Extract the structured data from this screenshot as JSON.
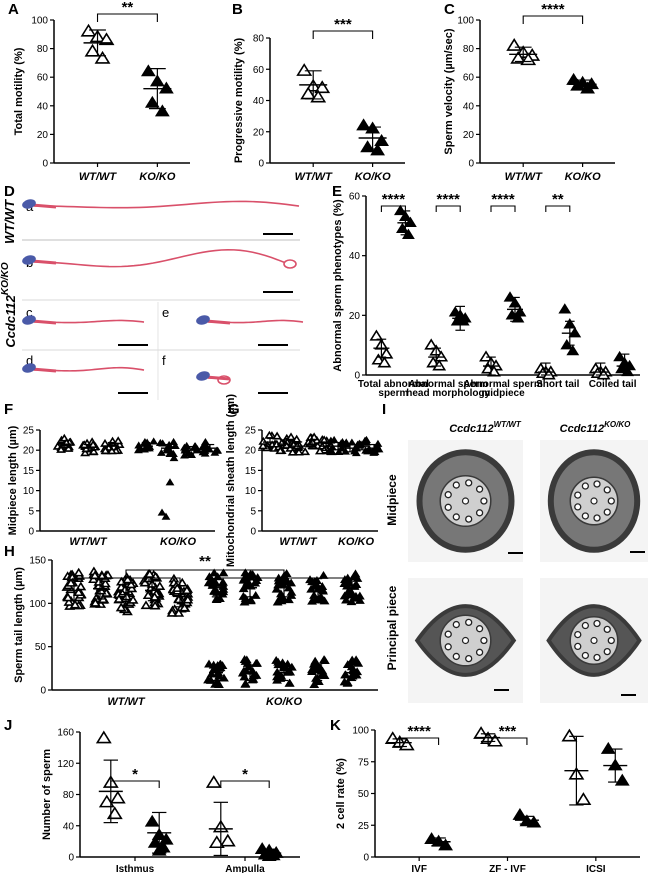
{
  "chart_data": [
    {
      "panel": "A",
      "type": "scatter",
      "ylabel": "Total motility (%)",
      "categories": [
        "WT/WT",
        "KO/KO"
      ],
      "ylim": [
        0,
        100
      ],
      "yticks": [
        0,
        20,
        40,
        60,
        80,
        100
      ],
      "significance": "**",
      "series": [
        {
          "marker": "open-triangle",
          "values": [
            92,
            88,
            86,
            78,
            73
          ]
        },
        {
          "marker": "filled-triangle",
          "values": [
            64,
            57,
            52,
            42,
            36
          ]
        }
      ],
      "mean": [
        84,
        52
      ],
      "sd": [
        9,
        14
      ]
    },
    {
      "panel": "B",
      "type": "scatter",
      "ylabel": "Progressive motility (%)",
      "categories": [
        "WT/WT",
        "KO/KO"
      ],
      "ylim": [
        0,
        80
      ],
      "yticks": [
        0,
        20,
        40,
        60,
        80
      ],
      "significance": "***",
      "series": [
        {
          "marker": "open-triangle",
          "values": [
            59,
            49,
            48,
            44,
            42
          ]
        },
        {
          "marker": "filled-triangle",
          "values": [
            24,
            22,
            14,
            10,
            8
          ]
        }
      ],
      "mean": [
        50,
        16
      ],
      "sd": [
        9,
        7
      ]
    },
    {
      "panel": "C",
      "type": "scatter",
      "ylabel": "Sperm velocity (µm/sec)",
      "categories": [
        "WT/WT",
        "KO/KO"
      ],
      "ylim": [
        0,
        100
      ],
      "yticks": [
        0,
        20,
        40,
        60,
        80,
        100
      ],
      "significance": "****",
      "series": [
        {
          "marker": "open-triangle",
          "values": [
            82,
            77,
            75,
            73,
            72
          ]
        },
        {
          "marker": "filled-triangle",
          "values": [
            58,
            56,
            55,
            54,
            52
          ]
        }
      ],
      "mean": [
        76,
        55
      ],
      "sd": [
        5,
        3
      ]
    },
    {
      "panel": "E",
      "type": "scatter",
      "ylabel": "Abnormal sperm phenotypes (%)",
      "categories": [
        "Total abnormal sperm",
        "Abnormal sperm head morphology",
        "Abnormal sperm midpiece",
        "Short tail",
        "Coiled tail"
      ],
      "ylim": [
        0,
        60
      ],
      "yticks": [
        0,
        20,
        40,
        60
      ],
      "significance": [
        "****",
        "****",
        "****",
        "**",
        ""
      ],
      "wt": [
        [
          13,
          10,
          7,
          5,
          4
        ],
        [
          10,
          8,
          6,
          4,
          3
        ],
        [
          6,
          4,
          3,
          2,
          1
        ],
        [
          2,
          1,
          1,
          0.5,
          0
        ],
        [
          2,
          1,
          1,
          0.5,
          0
        ]
      ],
      "ko": [
        [
          55,
          53,
          51,
          49,
          47
        ],
        [
          21,
          20,
          19,
          18,
          18
        ],
        [
          26,
          24,
          21,
          20,
          19
        ],
        [
          22,
          17,
          14,
          10,
          8
        ],
        [
          6,
          4,
          3,
          2,
          1
        ]
      ],
      "wt_mean": [
        9,
        6,
        3,
        1,
        1
      ],
      "ko_mean": [
        51,
        19,
        22,
        14,
        3
      ]
    },
    {
      "panel": "F",
      "type": "scatter",
      "ylabel": "Midpiece length (µm)",
      "groups": [
        "WT/WT",
        "KO/KO"
      ],
      "ylim": [
        0,
        25
      ],
      "yticks": [
        0,
        5,
        10,
        15,
        20,
        25
      ],
      "wt_means": [
        21.5,
        20.5,
        21
      ],
      "ko_means": [
        21,
        20.5,
        20,
        20.5
      ],
      "ko_outliers": [
        4.5,
        3.5,
        12,
        18
      ]
    },
    {
      "panel": "G",
      "type": "scatter",
      "ylabel": "Mitochondrial sheath length (µm)",
      "groups": [
        "WT/WT",
        "KO/KO"
      ],
      "ylim": [
        0,
        25
      ],
      "yticks": [
        0,
        5,
        10,
        15,
        20,
        25
      ],
      "wt_means": [
        22,
        21.5,
        21,
        21.5,
        21
      ],
      "ko_means": [
        21,
        20.5,
        21,
        20.5
      ]
    },
    {
      "panel": "H",
      "type": "scatter",
      "ylabel": "Sperm tail length (µm)",
      "groups": [
        "WT/WT",
        "KO/KO"
      ],
      "ylim": [
        0,
        150
      ],
      "yticks": [
        0,
        50,
        100,
        150
      ],
      "significance": "**",
      "wt_means": [
        115,
        117,
        110,
        115,
        108
      ],
      "ko_means": [
        100,
        90,
        95,
        92,
        88
      ]
    },
    {
      "panel": "J",
      "type": "scatter",
      "ylabel": "Number of sperm",
      "categories": [
        "Isthmus",
        "Ampulla"
      ],
      "ylim": [
        0,
        160
      ],
      "yticks": [
        0,
        40,
        80,
        120,
        160
      ],
      "significance": [
        "*",
        "*"
      ],
      "wt": [
        [
          152,
          95,
          75,
          70,
          55
        ],
        [
          95,
          38,
          20,
          18
        ]
      ],
      "ko": [
        [
          45,
          28,
          22,
          18,
          12,
          8
        ],
        [
          10,
          8,
          5,
          3,
          2,
          1
        ]
      ],
      "wt_mean": [
        84,
        36
      ],
      "wt_sd": [
        40,
        34
      ],
      "ko_mean": [
        31,
        5
      ],
      "ko_sd": [
        26,
        5
      ]
    },
    {
      "panel": "K",
      "type": "scatter",
      "ylabel": "2 cell rate (%)",
      "categories": [
        "IVF",
        "ZF - IVF",
        "ICSI"
      ],
      "ylim": [
        0,
        100
      ],
      "yticks": [
        0,
        25,
        50,
        75,
        100
      ],
      "yticklabels": [
        "0",
        "25",
        "50",
        "75",
        "100"
      ],
      "significance": [
        "****",
        "***",
        ""
      ],
      "wt": [
        [
          93,
          90,
          88
        ],
        [
          97,
          93,
          91
        ],
        [
          95,
          65,
          45
        ]
      ],
      "ko": [
        [
          14,
          12,
          9
        ],
        [
          33,
          28,
          27
        ],
        [
          85,
          72,
          60
        ]
      ],
      "wt_mean": [
        90,
        94,
        68
      ],
      "wt_sd": [
        3,
        3,
        27
      ],
      "ko_mean": [
        12,
        29,
        72
      ],
      "ko_sd": [
        3,
        3,
        13
      ]
    }
  ],
  "panels": {
    "A": "A",
    "B": "B",
    "C": "C",
    "D": "D",
    "E": "E",
    "F": "F",
    "G": "G",
    "H": "H",
    "I": "I",
    "J": "J",
    "K": "K"
  },
  "micrograph_d": {
    "row_labels": [
      "a",
      "b",
      "c",
      "d",
      "e",
      "f"
    ],
    "wt_label": "WT/WT",
    "gene_label": "Ccdc112",
    "gene_sup": "KO/KO"
  },
  "micrograph_i": {
    "col1": "Ccdc112",
    "col1_sup": "WT/WT",
    "col2": "Ccdc112",
    "col2_sup": "KO/KO",
    "row1": "Midpiece",
    "row2": "Principal piece"
  },
  "colors": {
    "sperm_head": "#4a5aa8",
    "sperm_tail": "#d9506a",
    "tem_dark": "#3a3a3a",
    "tem_light": "#cfcfcf"
  }
}
